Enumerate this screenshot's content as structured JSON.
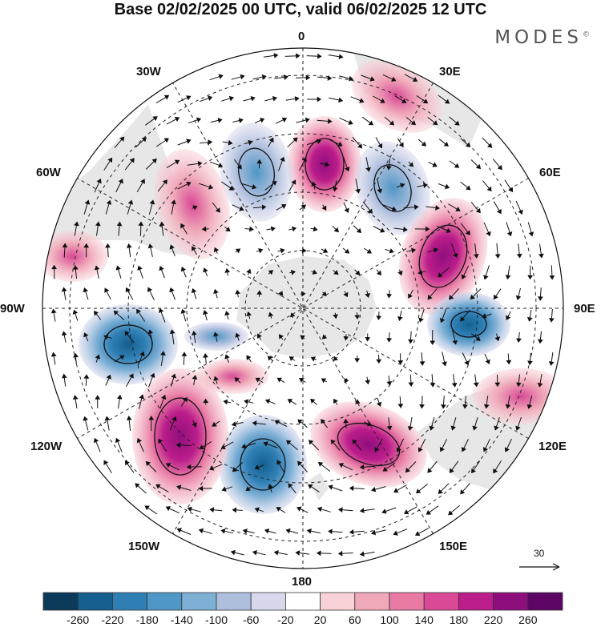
{
  "title": "Base 02/02/2025 00 UTC, valid 06/02/2025 12 UTC",
  "brand": "MODES",
  "brand_mark": "©",
  "longitude_labels": {
    "lon_0": "0",
    "lon_30e": "30E",
    "lon_60e": "60E",
    "lon_90e": "90E",
    "lon_120e": "120E",
    "lon_150e": "150E",
    "lon_180": "180",
    "lon_150w": "150W",
    "lon_120w": "120W",
    "lon_90w": "90W",
    "lon_60w": "60W",
    "lon_30w": "30W"
  },
  "wind_reference_vector": "30",
  "colorbar": {
    "ticks": [
      "-260",
      "-220",
      "-180",
      "-140",
      "-100",
      "-60",
      "-20",
      "20",
      "60",
      "100",
      "140",
      "180",
      "220",
      "260"
    ],
    "colors": [
      "#0b3a5a",
      "#155f8f",
      "#2f7fb5",
      "#4f97c6",
      "#7eb0d6",
      "#aebfdd",
      "#d7d8ec",
      "#ffffff",
      "#f8d2d7",
      "#f0a9b9",
      "#e87aa4",
      "#d94996",
      "#bb1d8a",
      "#8f0e7d",
      "#5c0565"
    ]
  },
  "map_style": {
    "land": "#e7e7e7",
    "coast": "#555555",
    "positive_anomaly": "#d94996",
    "negative_anomaly": "#2f7fb5"
  }
}
